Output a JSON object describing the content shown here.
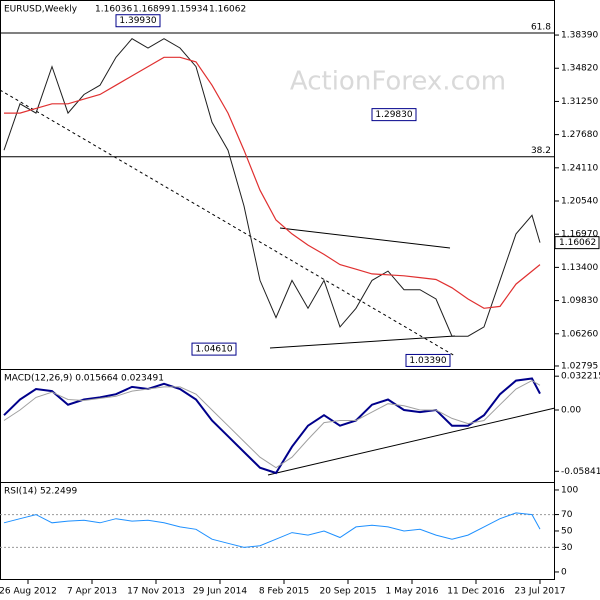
{
  "chart_data": [
    {
      "type": "line",
      "title": "EURUSD,Weekly",
      "ohlc": [
        1.16036,
        1.16899,
        1.15934,
        1.16062
      ],
      "watermark": "ActionForex.com",
      "x": [
        -12,
        -4,
        4,
        12,
        20,
        28,
        36,
        44,
        52,
        60,
        68,
        76,
        84,
        92,
        100,
        108,
        116,
        124,
        132,
        140,
        148,
        156,
        164,
        172,
        180,
        188,
        196,
        204,
        212,
        220,
        228,
        236,
        244,
        252,
        256
      ],
      "series": [
        {
          "name": "Close",
          "color": "#1f1f1f",
          "values": [
            1.26,
            1.31,
            1.3,
            1.35,
            1.3,
            1.32,
            1.33,
            1.36,
            1.38,
            1.37,
            1.38,
            1.37,
            1.35,
            1.29,
            1.26,
            1.2,
            1.12,
            1.08,
            1.12,
            1.09,
            1.12,
            1.07,
            1.09,
            1.12,
            1.13,
            1.11,
            1.11,
            1.1,
            1.06,
            1.06,
            1.07,
            1.12,
            1.17,
            1.19,
            1.16062
          ]
        },
        {
          "name": "MA",
          "color": "#e03030",
          "values": [
            1.3,
            1.3,
            1.305,
            1.31,
            1.31,
            1.315,
            1.32,
            1.33,
            1.34,
            1.35,
            1.36,
            1.36,
            1.355,
            1.33,
            1.3,
            1.26,
            1.217,
            1.185,
            1.17,
            1.158,
            1.148,
            1.137,
            1.132,
            1.127,
            1.126,
            1.125,
            1.123,
            1.121,
            1.112,
            1.1,
            1.09,
            1.092,
            1.116,
            1.13,
            1.137
          ]
        }
      ],
      "annotations": [
        {
          "x": 55,
          "value": 1.3993,
          "label": "1.39930"
        },
        {
          "x": 183,
          "value": 1.2983,
          "label": "1.29830"
        },
        {
          "x": 93,
          "value": 1.0461,
          "label": "1.04610"
        },
        {
          "x": 200,
          "value": 1.0339,
          "label": "1.03390"
        }
      ],
      "levels": [
        {
          "value": 1.3861,
          "label": "61.8"
        },
        {
          "value": 1.253,
          "label": "38.2"
        }
      ],
      "xlim": [
        -14,
        263.5
      ],
      "ylim": [
        1.0247,
        1.4216
      ],
      "yticks": [
        {
          "value": 1.3839,
          "label": "1.38390"
        },
        {
          "value": 1.3482,
          "label": "1.34820"
        },
        {
          "value": 1.3125,
          "label": "1.31250"
        },
        {
          "value": 1.2768,
          "label": "1.27680"
        },
        {
          "value": 1.2411,
          "label": "1.24110"
        },
        {
          "value": 1.2054,
          "label": "1.20540"
        },
        {
          "value": 1.1697,
          "label": "1.16970"
        },
        {
          "value": 1.134,
          "label": "1.13400"
        },
        {
          "value": 1.0983,
          "label": "1.09830"
        },
        {
          "value": 1.0626,
          "label": "1.06260"
        },
        {
          "value": 1.02795,
          "label": "1.02795"
        }
      ]
    },
    {
      "type": "line",
      "title": "MACD(12,26,9) 0.015664 0.023491",
      "x": [
        -12,
        -4,
        4,
        12,
        20,
        28,
        36,
        44,
        52,
        60,
        68,
        76,
        84,
        92,
        100,
        108,
        116,
        124,
        132,
        140,
        148,
        156,
        164,
        172,
        180,
        188,
        196,
        204,
        212,
        220,
        228,
        236,
        244,
        252,
        256
      ],
      "series": [
        {
          "name": "MACD",
          "color": "#00008b",
          "values": [
            -0.005,
            0.01,
            0.02,
            0.018,
            0.005,
            0.01,
            0.012,
            0.015,
            0.022,
            0.02,
            0.025,
            0.02,
            0.01,
            -0.01,
            -0.025,
            -0.04,
            -0.055,
            -0.06,
            -0.035,
            -0.015,
            -0.005,
            -0.015,
            -0.01,
            0.005,
            0.01,
            0.0,
            -0.002,
            0.0,
            -0.015,
            -0.015,
            -0.005,
            0.015,
            0.028,
            0.03,
            0.015664
          ]
        },
        {
          "name": "Signal",
          "color": "#a0a0a0",
          "values": [
            -0.01,
            0.0,
            0.012,
            0.017,
            0.01,
            0.009,
            0.011,
            0.013,
            0.018,
            0.02,
            0.022,
            0.022,
            0.015,
            0.0,
            -0.015,
            -0.03,
            -0.045,
            -0.055,
            -0.045,
            -0.028,
            -0.012,
            -0.01,
            -0.01,
            -0.002,
            0.006,
            0.004,
            0.0,
            0.0,
            -0.008,
            -0.013,
            -0.01,
            0.005,
            0.02,
            0.028,
            0.023491
          ]
        }
      ],
      "xlim": [
        -14,
        263.5
      ],
      "ylim": [
        -0.0686,
        0.0381
      ],
      "yticks": [
        0.032215,
        {
          "value": 0,
          "label": "0.00"
        },
        -0.058413
      ]
    },
    {
      "type": "line",
      "title": "RSI(14) 52.2499",
      "x": [
        -12,
        -4,
        4,
        12,
        20,
        28,
        36,
        44,
        52,
        60,
        68,
        76,
        84,
        92,
        100,
        108,
        116,
        124,
        132,
        140,
        148,
        156,
        164,
        172,
        180,
        188,
        196,
        204,
        212,
        220,
        228,
        236,
        244,
        252,
        256
      ],
      "series": [
        {
          "name": "RSI",
          "color": "#1e90ff",
          "values": [
            60,
            65,
            70,
            60,
            62,
            63,
            60,
            65,
            62,
            63,
            60,
            55,
            52,
            40,
            35,
            30,
            32,
            40,
            48,
            45,
            50,
            42,
            55,
            57,
            55,
            50,
            52,
            45,
            40,
            45,
            55,
            65,
            72,
            70,
            52.2499
          ]
        }
      ],
      "dashed_levels": [
        70,
        30
      ],
      "xlim": [
        -14,
        263.5
      ],
      "ylim": [
        -9.8,
        108.5
      ],
      "yticks": [
        100,
        70,
        50,
        30,
        0
      ],
      "xticks": [
        {
          "value": 0,
          "label": "26 Aug 2012"
        },
        {
          "value": 32,
          "label": "7 Apr 2013"
        },
        {
          "value": 64,
          "label": "17 Nov 2013"
        },
        {
          "value": 96,
          "label": "29 Jun 2014"
        },
        {
          "value": 128,
          "label": "8 Feb 2015"
        },
        {
          "value": 160,
          "label": "20 Sep 2015"
        },
        {
          "value": 192,
          "label": "1 May 2016"
        },
        {
          "value": 224,
          "label": "11 Dec 2016"
        },
        {
          "value": 256,
          "label": "23 Jul 2017"
        }
      ]
    }
  ]
}
